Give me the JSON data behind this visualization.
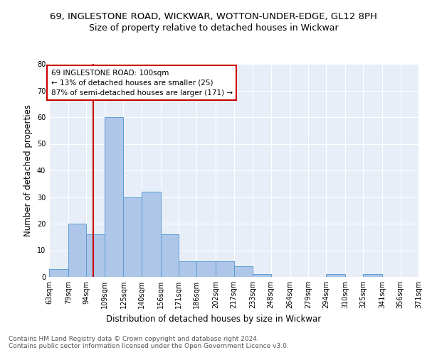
{
  "title_line1": "69, INGLESTONE ROAD, WICKWAR, WOTTON-UNDER-EDGE, GL12 8PH",
  "title_line2": "Size of property relative to detached houses in Wickwar",
  "xlabel": "Distribution of detached houses by size in Wickwar",
  "ylabel": "Number of detached properties",
  "bin_edges": [
    63,
    79,
    94,
    109,
    125,
    140,
    156,
    171,
    186,
    202,
    217,
    233,
    248,
    264,
    279,
    294,
    310,
    325,
    341,
    356,
    371
  ],
  "counts": [
    3,
    20,
    16,
    60,
    30,
    32,
    16,
    6,
    6,
    6,
    4,
    1,
    0,
    0,
    0,
    1,
    0,
    1,
    0,
    0
  ],
  "bar_color": "#aec6e8",
  "bar_edge_color": "#5a9fd4",
  "subject_size": 100,
  "red_line_color": "#cc0000",
  "annotation_line1": "69 INGLESTONE ROAD: 100sqm",
  "annotation_line2": "← 13% of detached houses are smaller (25)",
  "annotation_line3": "87% of semi-detached houses are larger (171) →",
  "annotation_box_color": "#ffffff",
  "annotation_box_edge": "#cc0000",
  "ylim": [
    0,
    80
  ],
  "yticks": [
    0,
    10,
    20,
    30,
    40,
    50,
    60,
    70,
    80
  ],
  "background_color": "#e8eef7",
  "grid_color": "#ffffff",
  "footnote_line1": "Contains HM Land Registry data © Crown copyright and database right 2024.",
  "footnote_line2": "Contains public sector information licensed under the Open Government Licence v3.0.",
  "title_fontsize": 9.5,
  "subtitle_fontsize": 9,
  "tick_label_fontsize": 7,
  "ylabel_fontsize": 8.5,
  "xlabel_fontsize": 8.5,
  "annotation_fontsize": 7.5,
  "footnote_fontsize": 6.5
}
